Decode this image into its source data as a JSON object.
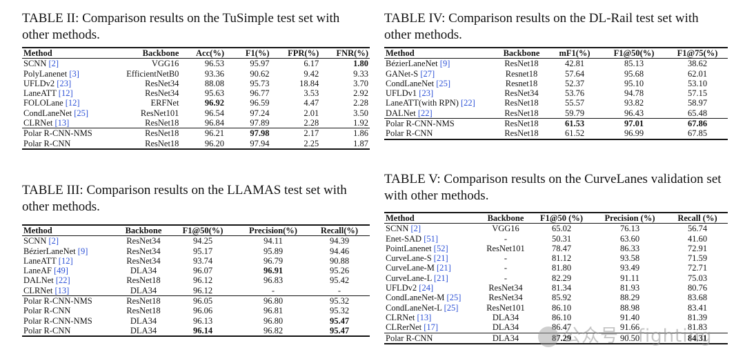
{
  "tables": {
    "t2": {
      "caption": "TABLE II: Comparison results on the TuSimple test set with other methods.",
      "columns": [
        "Method",
        "Backbone",
        "Acc(%)",
        "F1(%)",
        "FPR(%)",
        "FNR(%)"
      ],
      "rows": [
        {
          "method": "SCNN",
          "ref": "[2]",
          "cells": [
            "VGG16",
            "96.53",
            "95.97",
            "6.17",
            "1.80"
          ],
          "bold": [
            4
          ],
          "sep": false
        },
        {
          "method": "PolyLanenet",
          "ref": "[3]",
          "cells": [
            "EfficientNetB0",
            "93.36",
            "90.62",
            "9.42",
            "9.33"
          ],
          "bold": [],
          "sep": false
        },
        {
          "method": "UFLDv2",
          "ref": "[23]",
          "cells": [
            "ResNet34",
            "88.08",
            "95.73",
            "18.84",
            "3.70"
          ],
          "bold": [],
          "sep": false
        },
        {
          "method": "LaneATT",
          "ref": "[12]",
          "cells": [
            "ResNet34",
            "95.63",
            "96.77",
            "3.53",
            "2.92"
          ],
          "bold": [],
          "sep": false
        },
        {
          "method": "FOLOLane",
          "ref": "[12]",
          "cells": [
            "ERFNet",
            "96.92",
            "96.59",
            "4.47",
            "2.28"
          ],
          "bold": [
            1
          ],
          "sep": false
        },
        {
          "method": "CondLaneNet",
          "ref": "[25]",
          "cells": [
            "ResNet101",
            "96.54",
            "97.24",
            "2.01",
            "3.50"
          ],
          "bold": [],
          "sep": false
        },
        {
          "method": "CLRNet",
          "ref": "[13]",
          "cells": [
            "ResNet18",
            "96.84",
            "97.89",
            "2.28",
            "1.92"
          ],
          "bold": [],
          "sep": false
        },
        {
          "method": "Polar R-CNN-NMS",
          "ref": "",
          "cells": [
            "ResNet18",
            "96.21",
            "97.98",
            "2.17",
            "1.86"
          ],
          "bold": [
            2
          ],
          "sep": true
        },
        {
          "method": "Polar R-CNN",
          "ref": "",
          "cells": [
            "ResNet18",
            "96.20",
            "97.94",
            "2.25",
            "1.87"
          ],
          "bold": [],
          "sep": false
        }
      ]
    },
    "t3": {
      "caption": "TABLE III: Comparison results on the LLAMAS test set with other methods.",
      "columns": [
        "Method",
        "Backbone",
        "F1@50(%)",
        "Precision(%)",
        "Recall(%)"
      ],
      "rows": [
        {
          "method": "SCNN",
          "ref": "[2]",
          "cells": [
            "ResNet34",
            "94.25",
            "94.11",
            "94.39"
          ],
          "bold": [],
          "sep": false
        },
        {
          "method": "BézierLaneNet",
          "ref": "[9]",
          "cells": [
            "ResNet34",
            "95.17",
            "95.89",
            "94.46"
          ],
          "bold": [],
          "sep": false
        },
        {
          "method": "LaneATT",
          "ref": "[12]",
          "cells": [
            "ResNet34",
            "93.74",
            "96.79",
            "90.88"
          ],
          "bold": [],
          "sep": false
        },
        {
          "method": "LaneAF",
          "ref": "[49]",
          "cells": [
            "DLA34",
            "96.07",
            "96.91",
            "95.26"
          ],
          "bold": [
            2
          ],
          "sep": false
        },
        {
          "method": "DALNet",
          "ref": "[22]",
          "cells": [
            "ResNet18",
            "96.12",
            "96.83",
            "95.42"
          ],
          "bold": [],
          "sep": false
        },
        {
          "method": "CLRNet",
          "ref": "[13]",
          "cells": [
            "DLA34",
            "96.12",
            "-",
            "-"
          ],
          "bold": [],
          "sep": false
        },
        {
          "method": "Polar R-CNN-NMS",
          "ref": "",
          "cells": [
            "ResNet18",
            "96.05",
            "96.80",
            "95.32"
          ],
          "bold": [],
          "sep": true
        },
        {
          "method": "Polar R-CNN",
          "ref": "",
          "cells": [
            "ResNet18",
            "96.06",
            "96.81",
            "95.32"
          ],
          "bold": [],
          "sep": false
        },
        {
          "method": "Polar R-CNN-NMS",
          "ref": "",
          "cells": [
            "DLA34",
            "96.13",
            "96.80",
            "95.47"
          ],
          "bold": [
            3
          ],
          "sep": false
        },
        {
          "method": "Polar R-CNN",
          "ref": "",
          "cells": [
            "DLA34",
            "96.14",
            "96.82",
            "95.47"
          ],
          "bold": [
            1,
            3
          ],
          "sep": false
        }
      ]
    },
    "t4": {
      "caption": "TABLE IV: Comparison results on the DL-Rail test set with other methods.",
      "columns": [
        "Method",
        "Backbone",
        "mF1(%)",
        "F1@50(%)",
        "F1@75(%)"
      ],
      "rows": [
        {
          "method": "BézierLaneNet",
          "ref": "[9]",
          "cells": [
            "ResNet18",
            "42.81",
            "85.13",
            "38.62"
          ],
          "bold": [],
          "sep": false
        },
        {
          "method": "GANet-S",
          "ref": "[27]",
          "cells": [
            "Resnet18",
            "57.64",
            "95.68",
            "62.01"
          ],
          "bold": [],
          "sep": false
        },
        {
          "method": "CondLaneNet",
          "ref": "[25]",
          "cells": [
            "Resnet18",
            "52.37",
            "95.10",
            "53.10"
          ],
          "bold": [],
          "sep": false
        },
        {
          "method": "UFLDv1",
          "ref": "[23]",
          "cells": [
            "ResNet34",
            "53.76",
            "94.78",
            "57.15"
          ],
          "bold": [],
          "sep": false
        },
        {
          "method": "LaneATT(with RPN)",
          "ref": "[22]",
          "cells": [
            "ResNet18",
            "55.57",
            "93.82",
            "58.97"
          ],
          "bold": [],
          "sep": false
        },
        {
          "method": "DALNet",
          "ref": "[22]",
          "cells": [
            "ResNet18",
            "59.79",
            "96.43",
            "65.48"
          ],
          "bold": [],
          "sep": false
        },
        {
          "method": "Polar R-CNN-NMS",
          "ref": "",
          "cells": [
            "ResNet18",
            "61.53",
            "97.01",
            "67.86"
          ],
          "bold": [
            1,
            2,
            3
          ],
          "sep": true
        },
        {
          "method": "Polar R-CNN",
          "ref": "",
          "cells": [
            "ResNet18",
            "61.52",
            "96.99",
            "67.85"
          ],
          "bold": [],
          "sep": false
        }
      ]
    },
    "t5": {
      "caption": "TABLE V: Comparison results on the CurveLanes validation set with other methods.",
      "columns": [
        "Method",
        "Backbone",
        "F1@50 (%)",
        "Precision (%)",
        "Recall (%)"
      ],
      "rows": [
        {
          "method": "SCNN",
          "ref": "[2]",
          "cells": [
            "VGG16",
            "65.02",
            "76.13",
            "56.74"
          ],
          "bold": [],
          "sep": false
        },
        {
          "method": "Enet-SAD",
          "ref": "[51]",
          "cells": [
            "-",
            "50.31",
            "63.60",
            "41.60"
          ],
          "bold": [],
          "sep": false
        },
        {
          "method": "PointLanenet",
          "ref": "[52]",
          "cells": [
            "ResNet101",
            "78.47",
            "86.33",
            "72.91"
          ],
          "bold": [],
          "sep": false
        },
        {
          "method": "CurveLane-S",
          "ref": "[21]",
          "cells": [
            "-",
            "81.12",
            "93.58",
            "71.59"
          ],
          "bold": [],
          "sep": false
        },
        {
          "method": "CurveLane-M",
          "ref": "[21]",
          "cells": [
            "-",
            "81.80",
            "93.49",
            "72.71"
          ],
          "bold": [],
          "sep": false
        },
        {
          "method": "CurveLane-L",
          "ref": "[21]",
          "cells": [
            "-",
            "82.29",
            "91.11",
            "75.03"
          ],
          "bold": [],
          "sep": false
        },
        {
          "method": "UFLDv2",
          "ref": "[24]",
          "cells": [
            "ResNet34",
            "81.34",
            "81.93",
            "80.76"
          ],
          "bold": [],
          "sep": false
        },
        {
          "method": "CondLaneNet-M",
          "ref": "[25]",
          "cells": [
            "ResNet34",
            "85.92",
            "88.29",
            "83.68"
          ],
          "bold": [],
          "sep": false
        },
        {
          "method": "CondLaneNet-L",
          "ref": "[25]",
          "cells": [
            "ResNet101",
            "86.10",
            "88.98",
            "83.41"
          ],
          "bold": [],
          "sep": false
        },
        {
          "method": "CLRNet",
          "ref": "[13]",
          "cells": [
            "DLA34",
            "86.10",
            "91.40",
            "81.39"
          ],
          "bold": [],
          "sep": false
        },
        {
          "method": "CLRerNet",
          "ref": "[17]",
          "cells": [
            "DLA34",
            "86.47",
            "91.66",
            "81.83"
          ],
          "bold": [],
          "sep": false
        },
        {
          "method": "Polar R-CNN",
          "ref": "",
          "cells": [
            "DLA34",
            "87.29",
            "90.50",
            "84.31"
          ],
          "bold": [
            1,
            3
          ],
          "sep": true
        }
      ]
    }
  },
  "watermark": {
    "text": "公众号 · fighting"
  },
  "colors": {
    "text": "#111111",
    "ref_link": "#2a4fd6",
    "background": "#ffffff"
  }
}
